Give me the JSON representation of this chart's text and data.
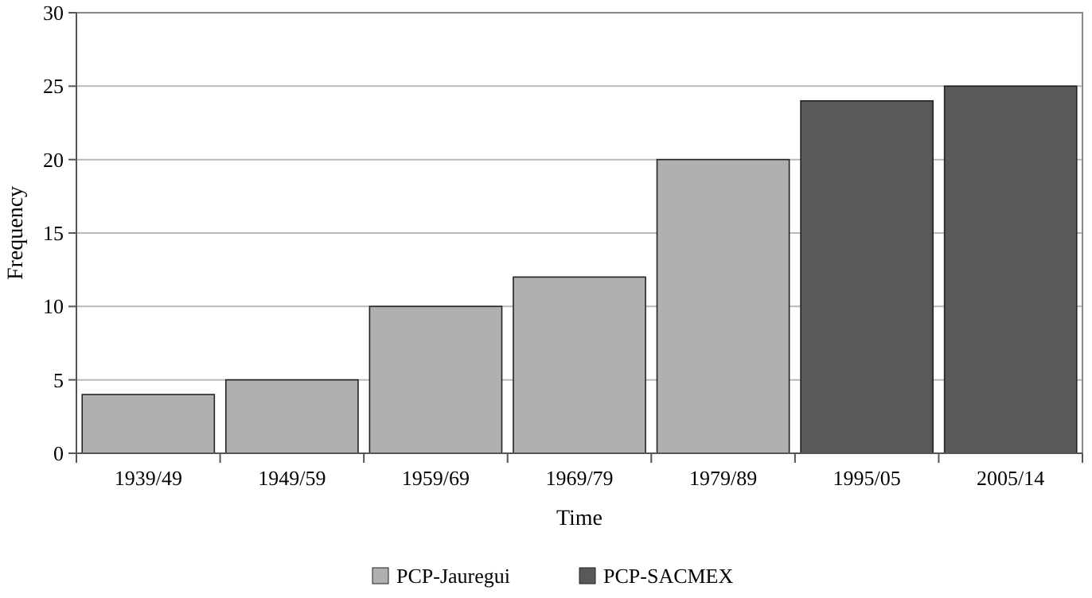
{
  "chart_data": {
    "type": "bar",
    "xlabel": "Time",
    "ylabel": "Frequency",
    "categories": [
      "1939/49",
      "1949/59",
      "1959/69",
      "1969/79",
      "1979/89",
      "1995/05",
      "2005/14"
    ],
    "series": [
      {
        "name": "PCP-Jauregui",
        "color": "#b0b0b0",
        "values": [
          4,
          5,
          10,
          12,
          20,
          null,
          null
        ]
      },
      {
        "name": "PCP-SACMEX",
        "color": "#595959",
        "values": [
          null,
          null,
          null,
          null,
          null,
          24,
          25
        ]
      }
    ],
    "ylim": [
      0,
      30
    ],
    "yticks": [
      0,
      5,
      10,
      15,
      20,
      25,
      30
    ],
    "grid": "y",
    "legend": "bottom"
  }
}
